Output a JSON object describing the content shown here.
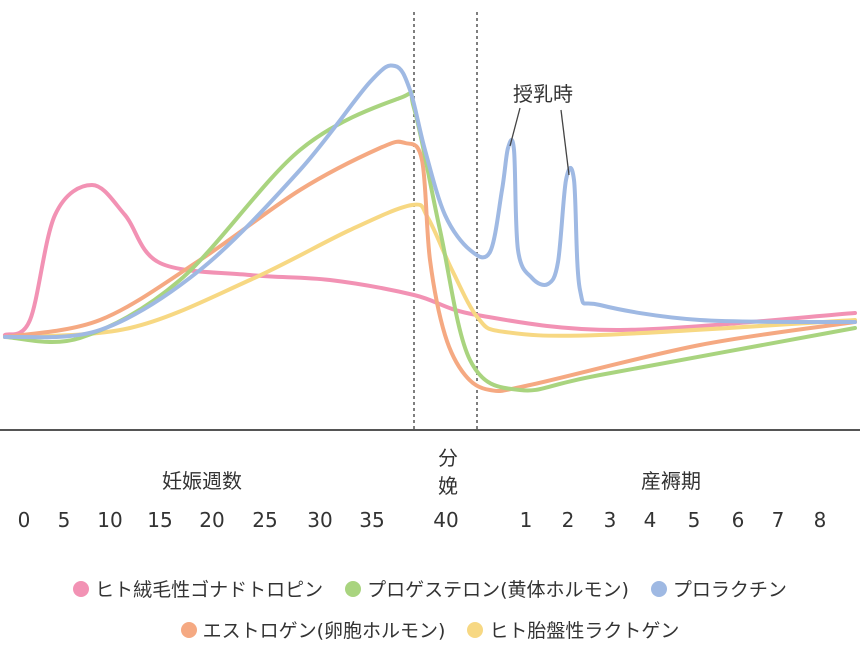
{
  "chart_data": {
    "type": "line",
    "xlabel_pregnancy": "妊娠週数",
    "xlabel_delivery": [
      "分",
      "娩"
    ],
    "xlabel_postpartum": "産褥期",
    "pregnancy_ticks": [
      "0",
      "5",
      "10",
      "15",
      "20",
      "25",
      "30",
      "35",
      "40"
    ],
    "postpartum_ticks": [
      "1",
      "2",
      "3",
      "4",
      "5",
      "6",
      "7",
      "8"
    ],
    "annotation": "授乳時",
    "grid": false,
    "legend_position": "bottom",
    "series": [
      {
        "name": "ヒト絨毛性ゴナドトロピン",
        "color": "#f292b4"
      },
      {
        "name": "プロゲステロン(黄体ホルモン)",
        "color": "#a9d47f"
      },
      {
        "name": "プロラクチン",
        "color": "#9fb9e3"
      },
      {
        "name": "エストロゲン(卵胞ホルモン)",
        "color": "#f5a982"
      },
      {
        "name": "ヒト胎盤性ラクトゲン",
        "color": "#f7d883"
      }
    ]
  }
}
